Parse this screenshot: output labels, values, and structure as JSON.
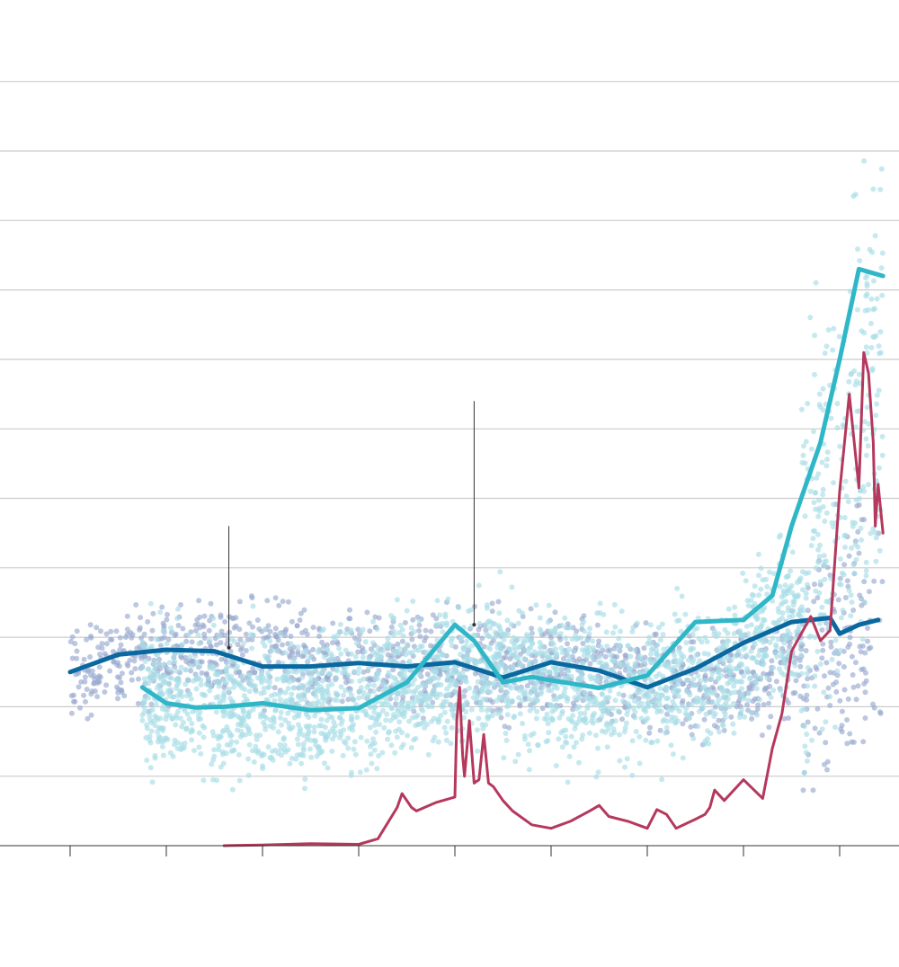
{
  "chart_data": {
    "type": "scatter",
    "title": "",
    "xlabel": "",
    "ylabel": "",
    "xlim": [
      2009,
      2018.6
    ],
    "ylim": [
      0,
      11
    ],
    "grid": true,
    "x_ticks": [
      2009,
      2010,
      2011,
      2012,
      2013,
      2014,
      2015,
      2016,
      2017,
      2018
    ],
    "y_gridlines": [
      1,
      2,
      3,
      4,
      5,
      6,
      7,
      8,
      9,
      10,
      11
    ],
    "colors": {
      "scatter_a": "#98a9d0",
      "scatter_b": "#a8dde6",
      "trend_a": "#0a68a0",
      "trend_b": "#2fb7c8",
      "price": "#b5385d"
    },
    "series": [
      {
        "id": "trend_a",
        "style": "line",
        "x": [
          2009.0,
          2009.5,
          2010.0,
          2010.5,
          2011.0,
          2011.5,
          2012.0,
          2012.5,
          2013.0,
          2013.5,
          2014.0,
          2014.5,
          2015.0,
          2015.5,
          2016.0,
          2016.5,
          2016.9,
          2017.0,
          2017.2,
          2017.4
        ],
        "y": [
          2.5,
          2.75,
          2.82,
          2.8,
          2.58,
          2.58,
          2.63,
          2.58,
          2.64,
          2.42,
          2.64,
          2.52,
          2.28,
          2.55,
          2.92,
          3.22,
          3.28,
          3.05,
          3.18,
          3.25
        ]
      },
      {
        "id": "trend_b",
        "style": "line",
        "x": [
          2009.75,
          2010.0,
          2010.3,
          2010.6,
          2011.0,
          2011.5,
          2012.0,
          2012.5,
          2013.0,
          2013.2,
          2013.5,
          2013.8,
          2014.0,
          2014.5,
          2015.0,
          2015.5,
          2016.0,
          2016.3,
          2016.5,
          2016.8,
          2017.0,
          2017.2,
          2017.45
        ],
        "y": [
          2.28,
          2.05,
          1.99,
          2.0,
          2.05,
          1.95,
          1.98,
          2.35,
          3.18,
          2.95,
          2.35,
          2.43,
          2.38,
          2.27,
          2.45,
          3.22,
          3.25,
          3.6,
          4.6,
          5.8,
          7.0,
          8.3,
          8.2
        ]
      },
      {
        "id": "price",
        "style": "line",
        "x": [
          2010.6,
          2011.0,
          2011.5,
          2012.0,
          2012.2,
          2012.4,
          2012.45,
          2012.55,
          2012.6,
          2012.8,
          2013.0,
          2013.02,
          2013.05,
          2013.08,
          2013.1,
          2013.15,
          2013.2,
          2013.25,
          2013.3,
          2013.35,
          2013.4,
          2013.5,
          2013.6,
          2013.8,
          2014.0,
          2014.2,
          2014.4,
          2014.5,
          2014.6,
          2014.8,
          2015.0,
          2015.1,
          2015.2,
          2015.3,
          2015.5,
          2015.6,
          2015.65,
          2015.7,
          2015.8,
          2016.0,
          2016.2,
          2016.3,
          2016.4,
          2016.5,
          2016.7,
          2016.8,
          2016.9,
          2017.0,
          2017.1,
          2017.2,
          2017.25,
          2017.3,
          2017.35,
          2017.37,
          2017.4,
          2017.45
        ],
        "y": [
          0.0,
          0.01,
          0.03,
          0.02,
          0.1,
          0.55,
          0.75,
          0.55,
          0.5,
          0.62,
          0.7,
          1.8,
          2.28,
          1.3,
          1.0,
          1.8,
          0.9,
          0.95,
          1.6,
          0.9,
          0.85,
          0.65,
          0.5,
          0.3,
          0.25,
          0.35,
          0.5,
          0.58,
          0.42,
          0.35,
          0.25,
          0.52,
          0.45,
          0.25,
          0.38,
          0.45,
          0.55,
          0.8,
          0.65,
          0.95,
          0.68,
          1.4,
          1.9,
          2.8,
          3.3,
          2.95,
          3.1,
          5.1,
          6.5,
          5.15,
          7.1,
          6.8,
          5.8,
          4.6,
          5.2,
          4.5
        ]
      }
    ],
    "annotations": [
      {
        "id": "marker_1",
        "x": 2010.65,
        "y_from": 2.85,
        "y_to": 4.6
      },
      {
        "id": "marker_2",
        "x": 2013.2,
        "y_from": 3.18,
        "y_to": 6.4
      }
    ],
    "scatter_regions": [
      {
        "id": "cloud_a",
        "color_key": "scatter_a",
        "x_range": [
          2009.0,
          2017.45
        ],
        "y_center": [
          2.5,
          2.75,
          2.82,
          2.6,
          2.6,
          2.6,
          2.5,
          2.3,
          2.6,
          3.0
        ],
        "spread": 0.35
      },
      {
        "id": "cloud_b",
        "color_key": "scatter_b",
        "x_range": [
          2009.75,
          2017.45
        ],
        "y_center": [
          2.2,
          2.0,
          2.0,
          2.2,
          2.6,
          2.3,
          2.3,
          2.5,
          3.5,
          7.0
        ],
        "spread": 0.5
      }
    ]
  }
}
